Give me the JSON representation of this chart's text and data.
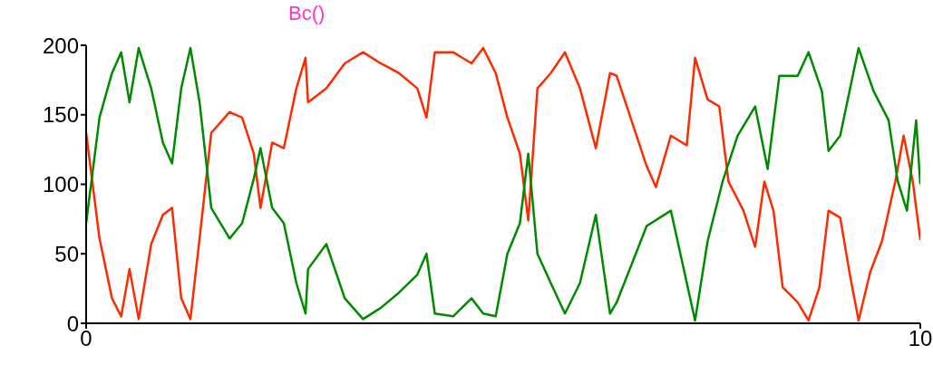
{
  "chart_data": {
    "type": "line",
    "annotations": [
      "Bc()"
    ],
    "xlim": [
      0,
      10
    ],
    "xticks": [
      0,
      10
    ],
    "ylim": [
      0,
      200
    ],
    "yticks": [
      0,
      50,
      100,
      150,
      200
    ],
    "marker": "none",
    "line_style": "solid",
    "series": [
      {
        "color": "#ff2a00",
        "x": [
          0,
          0.16,
          0.31,
          0.42,
          0.52,
          0.63,
          0.78,
          0.92,
          1.03,
          1.14,
          1.25,
          1.36,
          1.5,
          1.72,
          1.87,
          2.01,
          2.09,
          2.23,
          2.37,
          2.52,
          2.63,
          2.66,
          2.88,
          3.1,
          3.32,
          3.53,
          3.75,
          3.97,
          4.08,
          4.18,
          4.4,
          4.62,
          4.76,
          4.91,
          5.05,
          5.2,
          5.3,
          5.41,
          5.57,
          5.74,
          5.92,
          6.11,
          6.28,
          6.36,
          6.72,
          6.83,
          7.01,
          7.2,
          7.3,
          7.45,
          7.59,
          7.7,
          7.88,
          8.02,
          8.13,
          8.24,
          8.35,
          8.53,
          8.66,
          8.79,
          8.9,
          9.04,
          9.15,
          9.26,
          9.4,
          9.54,
          9.7,
          9.8,
          9.91,
          10
        ],
        "values": [
          137,
          61,
          18,
          5,
          39,
          3,
          57,
          78,
          83,
          18,
          3,
          61,
          137,
          152,
          148,
          122,
          83,
          130,
          126,
          169,
          191,
          159,
          169,
          187,
          195,
          187,
          180,
          169,
          148,
          195,
          195,
          187,
          198,
          180,
          148,
          122,
          74,
          169,
          180,
          195,
          169,
          126,
          180,
          178,
          113,
          98,
          135,
          128,
          191,
          161,
          156,
          102,
          81,
          55,
          102,
          81,
          26,
          15,
          2,
          26,
          81,
          76,
          37,
          2,
          37,
          59,
          102,
          135,
          102,
          60
        ]
      },
      {
        "color": "#008a00",
        "x": [
          0,
          0.16,
          0.31,
          0.42,
          0.52,
          0.63,
          0.78,
          0.92,
          1.03,
          1.14,
          1.25,
          1.36,
          1.5,
          1.72,
          1.87,
          2.01,
          2.09,
          2.23,
          2.37,
          2.52,
          2.63,
          2.66,
          2.88,
          3.1,
          3.32,
          3.53,
          3.75,
          3.97,
          4.08,
          4.18,
          4.4,
          4.62,
          4.76,
          4.91,
          5.05,
          5.2,
          5.3,
          5.41,
          5.57,
          5.74,
          5.92,
          6.11,
          6.28,
          6.36,
          6.72,
          7.01,
          7.3,
          7.45,
          7.63,
          7.81,
          8.02,
          8.17,
          8.31,
          8.53,
          8.66,
          8.82,
          8.9,
          9.04,
          9.26,
          9.44,
          9.62,
          9.73,
          9.84,
          9.95,
          10
        ],
        "values": [
          72,
          148,
          180,
          195,
          159,
          198,
          169,
          130,
          115,
          169,
          198,
          159,
          83,
          61,
          72,
          104,
          126,
          83,
          72,
          29,
          7,
          39,
          57,
          18,
          3,
          11,
          22,
          35,
          50,
          7,
          5,
          18,
          7,
          5,
          50,
          72,
          122,
          50,
          29,
          7,
          29,
          78,
          7,
          15,
          70,
          81,
          2,
          59,
          102,
          135,
          156,
          111,
          178,
          178,
          195,
          167,
          124,
          135,
          198,
          167,
          146,
          102,
          81,
          146,
          100
        ]
      }
    ]
  }
}
